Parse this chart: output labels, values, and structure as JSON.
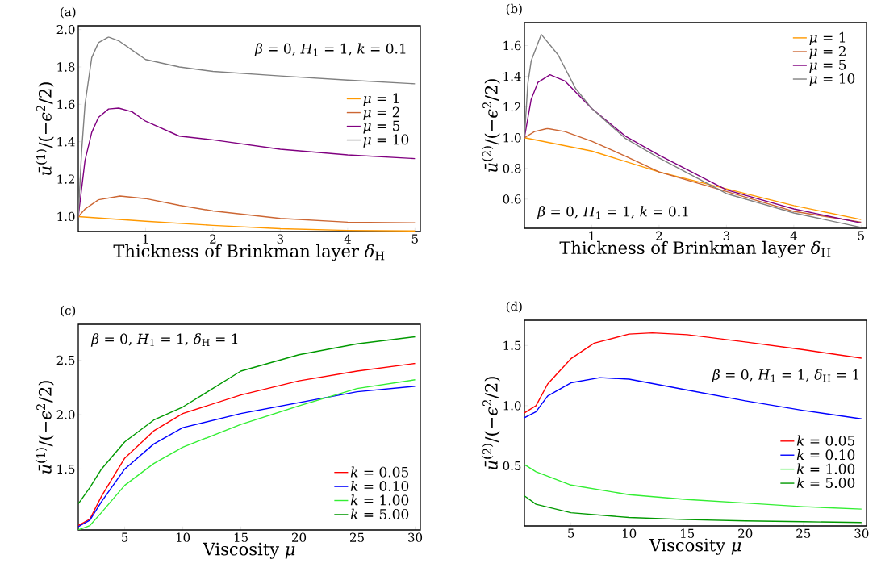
{
  "chart_data": [
    {
      "type": "line",
      "title": "(a)",
      "xlabel": "Thickness of Brinkman layer *δ*$_{H}$",
      "ylabel": "*ū*$^{(1)}$/(−*ϵ*$^{2}$/2)",
      "annotations": [
        "*β* = 0,  *H*$_{1}$ = 1,  *k* = 0.1"
      ],
      "xlim": [
        0,
        5.08
      ],
      "ylim": [
        0.92,
        2.02
      ],
      "xticks": [
        1,
        2,
        3,
        4,
        5
      ],
      "yticks": [
        {
          "value": 1.0,
          "label": "1.0"
        },
        {
          "value": 1.2,
          "label": "1.2"
        },
        {
          "value": 1.4,
          "label": "1.4"
        },
        {
          "value": 1.6,
          "label": "1.6"
        },
        {
          "value": 1.8,
          "label": "1.8"
        },
        {
          "value": 2.0,
          "label": "2.0"
        }
      ],
      "grid": false,
      "legend": "right",
      "marker": "none",
      "line_style": "solid",
      "series": [
        {
          "name": "*μ* = 1",
          "color": "#ff9900",
          "x": [
            0,
            1,
            2,
            3,
            4,
            5
          ],
          "values": [
            1.0,
            0.975,
            0.953,
            0.935,
            0.926,
            0.923
          ]
        },
        {
          "name": "*μ* = 2",
          "color": "#cc6633",
          "x": [
            0,
            0.1,
            0.3,
            0.62,
            1,
            1.5,
            2,
            3,
            4,
            5
          ],
          "values": [
            1.0,
            1.04,
            1.09,
            1.11,
            1.096,
            1.06,
            1.03,
            0.99,
            0.97,
            0.966
          ]
        },
        {
          "name": "*μ* = 5",
          "color": "#800080",
          "x": [
            0,
            0.1,
            0.2,
            0.3,
            0.45,
            0.6,
            0.8,
            1,
            1.5,
            2,
            3,
            4,
            5
          ],
          "values": [
            1.0,
            1.3,
            1.45,
            1.53,
            1.575,
            1.58,
            1.56,
            1.51,
            1.43,
            1.41,
            1.36,
            1.33,
            1.31
          ]
        },
        {
          "name": "*μ* = 10",
          "color": "#808080",
          "x": [
            0,
            0.05,
            0.1,
            0.2,
            0.3,
            0.45,
            0.6,
            0.8,
            1,
            1.5,
            2,
            3,
            4,
            5
          ],
          "values": [
            1.0,
            1.35,
            1.6,
            1.85,
            1.93,
            1.96,
            1.94,
            1.89,
            1.84,
            1.8,
            1.776,
            1.752,
            1.73,
            1.71
          ]
        }
      ]
    },
    {
      "type": "line",
      "title": "(b)",
      "xlabel": "Thickness of Brinkman layer *δ*$_{H}$",
      "ylabel": "*ū*$^{(2)}$/(−*ϵ*$^{2}$/2)",
      "annotations": [
        "*β* = 0,  *H*$_{1}$ = 1,  *k* = 0.1"
      ],
      "xlim": [
        0,
        5.08
      ],
      "ylim": [
        0.41,
        1.75
      ],
      "xticks": [
        1,
        2,
        3,
        4,
        5
      ],
      "yticks": [
        {
          "value": 0.6,
          "label": "0.6"
        },
        {
          "value": 0.8,
          "label": "0.8"
        },
        {
          "value": 1.0,
          "label": "1.0"
        },
        {
          "value": 1.2,
          "label": "1.2"
        },
        {
          "value": 1.4,
          "label": "1.4"
        },
        {
          "value": 1.6,
          "label": "1.6"
        }
      ],
      "grid": false,
      "legend": "top right",
      "marker": "none",
      "line_style": "solid",
      "series": [
        {
          "name": "*μ* = 1",
          "color": "#ff9900",
          "x": [
            0,
            1,
            2,
            3,
            4,
            5
          ],
          "values": [
            1.0,
            0.913,
            0.777,
            0.667,
            0.558,
            0.467
          ]
        },
        {
          "name": "*μ* = 2",
          "color": "#cc6633",
          "x": [
            0,
            0.15,
            0.34,
            0.6,
            1,
            1.5,
            2,
            3,
            4,
            5
          ],
          "values": [
            1.0,
            1.04,
            1.06,
            1.04,
            0.977,
            0.88,
            0.777,
            0.65,
            0.52,
            0.45
          ]
        },
        {
          "name": "*μ* = 5",
          "color": "#800080",
          "x": [
            0,
            0.1,
            0.2,
            0.38,
            0.6,
            0.8,
            1,
            1.5,
            2,
            3,
            4,
            5
          ],
          "values": [
            1.0,
            1.25,
            1.36,
            1.41,
            1.37,
            1.28,
            1.19,
            1.01,
            0.886,
            0.66,
            0.536,
            0.445
          ]
        },
        {
          "name": "*μ* = 10",
          "color": "#808080",
          "x": [
            0,
            0.05,
            0.1,
            0.25,
            0.5,
            0.76,
            1,
            1.5,
            2,
            3,
            4,
            5
          ],
          "values": [
            1.0,
            1.35,
            1.5,
            1.673,
            1.54,
            1.32,
            1.19,
            0.995,
            0.868,
            0.636,
            0.51,
            0.416
          ]
        }
      ]
    },
    {
      "type": "line",
      "title": "(c)",
      "xlabel": "Viscosity *μ*",
      "ylabel": "*ū*$^{(1)}$/(−*ϵ*$^{2}$/2)",
      "annotations": [
        "*β* = 0,  *H*$_{1}$ = 1,  *δ*$_{H}$ = 1"
      ],
      "xlim": [
        1,
        30.45
      ],
      "ylim": [
        0.94,
        2.83
      ],
      "xticks": [
        5,
        10,
        15,
        20,
        25,
        30
      ],
      "yticks": [
        1.5,
        {
          "value": 2.0,
          "label": "2.0"
        },
        2.5
      ],
      "grid": false,
      "legend": "bottom right",
      "marker": "none",
      "line_style": "solid",
      "series": [
        {
          "name": "*k* = 0.05",
          "color": "#ff0000",
          "x": [
            1,
            2,
            3,
            5,
            7.5,
            10,
            15,
            20,
            25,
            30
          ],
          "values": [
            0.98,
            1.04,
            1.25,
            1.6,
            1.85,
            2.01,
            2.18,
            2.31,
            2.4,
            2.47
          ]
        },
        {
          "name": "*k* = 0.10",
          "color": "#0000ff",
          "x": [
            1,
            2,
            3,
            5,
            7.5,
            10,
            15,
            20,
            25,
            30
          ],
          "values": [
            0.97,
            1.03,
            1.2,
            1.5,
            1.73,
            1.88,
            2.01,
            2.11,
            2.21,
            2.26
          ]
        },
        {
          "name": "*k* = 1.00",
          "color": "#33ee33",
          "x": [
            1,
            2,
            3,
            5,
            7.5,
            10,
            15,
            20,
            25,
            30
          ],
          "values": [
            0.94,
            0.98,
            1.1,
            1.35,
            1.55,
            1.7,
            1.91,
            2.08,
            2.24,
            2.32
          ]
        },
        {
          "name": "*k* = 5.00",
          "color": "#009900",
          "x": [
            1,
            2,
            3,
            5,
            7.5,
            10,
            15,
            20,
            25,
            30
          ],
          "values": [
            1.18,
            1.33,
            1.5,
            1.75,
            1.95,
            2.07,
            2.4,
            2.55,
            2.65,
            2.715
          ]
        }
      ]
    },
    {
      "type": "line",
      "title": "(d)",
      "xlabel": "Viscosity *μ*",
      "ylabel": "*ū*$^{(2)}$/(−*ϵ*$^{2}$/2)",
      "annotations": [
        "*β* = 0,  *H*$_{1}$ = 1,  *δ*$_{H}$ = 1"
      ],
      "xlim": [
        1,
        30.43
      ],
      "ylim": [
        0,
        1.71
      ],
      "xticks": [
        5,
        10,
        15,
        20,
        25,
        30
      ],
      "yticks": [
        0.5,
        {
          "value": 1.0,
          "label": "1.0"
        },
        1.5
      ],
      "grid": false,
      "legend": "right",
      "marker": "none",
      "line_style": "solid",
      "series": [
        {
          "name": "*k* = 0.05",
          "color": "#ff0000",
          "x": [
            1,
            2,
            3,
            5,
            7,
            10,
            12,
            15,
            20,
            25,
            30
          ],
          "values": [
            0.94,
            1.0,
            1.18,
            1.39,
            1.52,
            1.595,
            1.605,
            1.59,
            1.53,
            1.465,
            1.395
          ]
        },
        {
          "name": "*k* = 0.10",
          "color": "#0000ff",
          "x": [
            1,
            2,
            3,
            5,
            7.5,
            10,
            15,
            20,
            25,
            30
          ],
          "values": [
            0.9,
            0.95,
            1.08,
            1.19,
            1.233,
            1.22,
            1.13,
            1.04,
            0.96,
            0.89
          ]
        },
        {
          "name": "*k* = 1.00",
          "color": "#33ee33",
          "x": [
            1,
            2,
            5,
            10,
            15,
            20,
            25,
            30
          ],
          "values": [
            0.51,
            0.45,
            0.34,
            0.26,
            0.22,
            0.19,
            0.16,
            0.14
          ]
        },
        {
          "name": "*k* = 5.00",
          "color": "#009900",
          "x": [
            1,
            2,
            5,
            10,
            15,
            20,
            25,
            30
          ],
          "values": [
            0.25,
            0.18,
            0.11,
            0.07,
            0.053,
            0.042,
            0.035,
            0.028
          ]
        }
      ]
    }
  ]
}
